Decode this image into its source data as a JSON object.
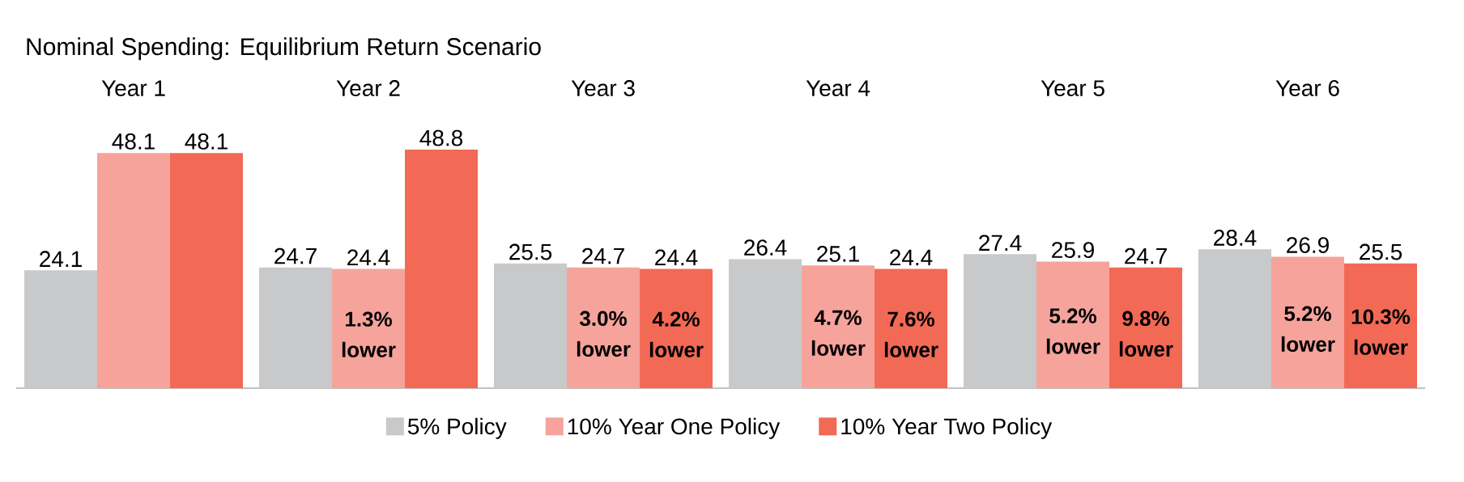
{
  "chart_data": {
    "type": "bar",
    "title": "Nominal Spending: Equilibrium Return Scenario",
    "categories": [
      "Year 1",
      "Year 2",
      "Year 3",
      "Year 4",
      "Year 5",
      "Year 6"
    ],
    "series": [
      {
        "name": "5% Policy",
        "color": "#c8c9ca",
        "values": [
          24.1,
          24.7,
          25.5,
          26.4,
          27.4,
          28.4
        ]
      },
      {
        "name": "10% Year One Policy",
        "color": "#f5a39b",
        "values": [
          48.1,
          24.4,
          24.7,
          25.1,
          25.9,
          26.9
        ]
      },
      {
        "name": "10% Year Two Policy",
        "color": "#f26a55",
        "values": [
          48.1,
          48.8,
          24.4,
          24.4,
          24.7,
          25.5
        ]
      }
    ],
    "data_labels": true,
    "legend": "bottom",
    "annotations": [
      "1.3% lower",
      "3.0% lower",
      "4.2% lower",
      "4.7% lower",
      "7.6% lower",
      "5.2% lower",
      "9.8% lower",
      "5.2% lower",
      "10.3% lower"
    ]
  }
}
